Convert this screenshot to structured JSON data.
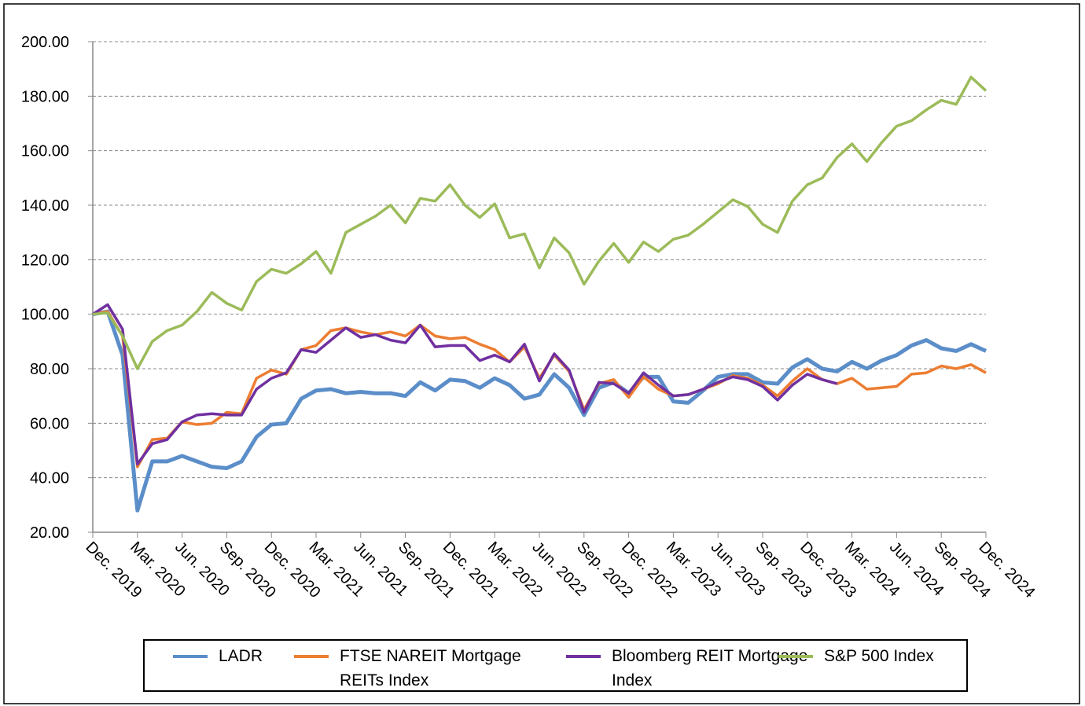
{
  "chart_data": {
    "type": "line",
    "categories": [
      "Dec. 2019",
      null,
      null,
      "Mar. 2020",
      null,
      null,
      "Jun. 2020",
      null,
      null,
      "Sep. 2020",
      null,
      null,
      "Dec. 2020",
      null,
      null,
      "Mar. 2021",
      null,
      null,
      "Jun. 2021",
      null,
      null,
      "Sep. 2021",
      null,
      null,
      "Dec. 2021",
      null,
      null,
      "Mar. 2022",
      null,
      null,
      "Jun. 2022",
      null,
      null,
      "Sep. 2022",
      null,
      null,
      "Dec. 2022",
      null,
      null,
      "Mar. 2023",
      null,
      null,
      "Jun. 2023",
      null,
      null,
      "Sep. 2023",
      null,
      null,
      "Dec. 2023",
      null,
      null,
      "Mar. 2024",
      null,
      null,
      "Jun. 2024",
      null,
      null,
      "Sep. 2024",
      null,
      null,
      "Dec. 2024"
    ],
    "series": [
      {
        "name": "LADR",
        "color": "#5b8ec9",
        "values": [
          100,
          101,
          85,
          28,
          46,
          46,
          48,
          46,
          44,
          43.5,
          46,
          55,
          59.5,
          60,
          69,
          72,
          72.5,
          71,
          71.5,
          71,
          71,
          70,
          75,
          72,
          76,
          75.5,
          73,
          76.5,
          74,
          69,
          70.5,
          78,
          73,
          63,
          73,
          75,
          71,
          77,
          77,
          68,
          67.5,
          72,
          77,
          78,
          78,
          75,
          74.5,
          80.5,
          83.5,
          80,
          79,
          82.5,
          80,
          83,
          85,
          88.5,
          90.5,
          87.5,
          86.5,
          89,
          86.5
        ]
      },
      {
        "name": "FTSE NAREIT Mortgage REITs Index",
        "color": "#ed7d31",
        "values": [
          100,
          101,
          92,
          44,
          54,
          54.5,
          60.5,
          59.5,
          60,
          64,
          63.5,
          76.5,
          79.5,
          78,
          87,
          88.5,
          94,
          95,
          93.5,
          92.5,
          93.5,
          92,
          96,
          92,
          91,
          91.5,
          89,
          87,
          82.5,
          88,
          76.5,
          85,
          79,
          65,
          74.5,
          76,
          69.5,
          77,
          72.5,
          70,
          70.5,
          72.5,
          74.5,
          77.5,
          76.5,
          74,
          70,
          75.5,
          80,
          76,
          74.5,
          76.5,
          72.5,
          73,
          73.5,
          78,
          78.5,
          81,
          80,
          81.5,
          78.5
        ]
      },
      {
        "name": "Bloomberg REIT Mortgage Index",
        "color": "#7030a0",
        "values": [
          100,
          103.5,
          94.5,
          45,
          52.5,
          54,
          60.5,
          63,
          63.5,
          63,
          63,
          72.5,
          76.5,
          78.5,
          87,
          86,
          90.5,
          95,
          91.5,
          92.5,
          90.5,
          89.5,
          96,
          88,
          88.5,
          88.5,
          83,
          85,
          82.5,
          89,
          75.5,
          85.5,
          79.5,
          64,
          75,
          74.5,
          71,
          78.5,
          74,
          70,
          70.5,
          72.5,
          75,
          77,
          76,
          73.5,
          68.5,
          74,
          78,
          76,
          74.5,
          null,
          null,
          null,
          null,
          null,
          null,
          null,
          null,
          null,
          null
        ]
      },
      {
        "name": "S&P 500 Index",
        "color": "#9bbb59",
        "values": [
          100,
          100.5,
          92,
          80,
          90,
          94,
          96,
          101,
          108,
          104,
          101.5,
          112,
          116.5,
          115,
          118.5,
          123,
          115,
          130,
          133,
          136,
          140,
          133.5,
          142.5,
          141.5,
          147.5,
          140,
          135.5,
          140.5,
          128,
          129.5,
          117,
          128,
          122.5,
          111,
          119.5,
          126,
          119,
          126.5,
          123,
          127.5,
          129,
          133,
          137.5,
          142,
          139.5,
          133,
          130,
          141.5,
          147.5,
          150,
          157.5,
          162.5,
          156,
          163,
          169,
          171,
          175,
          178.5,
          177,
          187,
          182
        ]
      }
    ],
    "ylim": [
      20,
      200
    ],
    "yticks": [
      {
        "value": 20,
        "label": "20.00"
      },
      {
        "value": 40,
        "label": "40.00"
      },
      {
        "value": 60,
        "label": "60.00"
      },
      {
        "value": 80,
        "label": "80.00"
      },
      {
        "value": 100,
        "label": "100.00"
      },
      {
        "value": 120,
        "label": "120.00"
      },
      {
        "value": 140,
        "label": "140.00"
      },
      {
        "value": 160,
        "label": "160.00"
      },
      {
        "value": 180,
        "label": "180.00"
      },
      {
        "value": 200,
        "label": "200.00"
      }
    ],
    "grid": true
  }
}
